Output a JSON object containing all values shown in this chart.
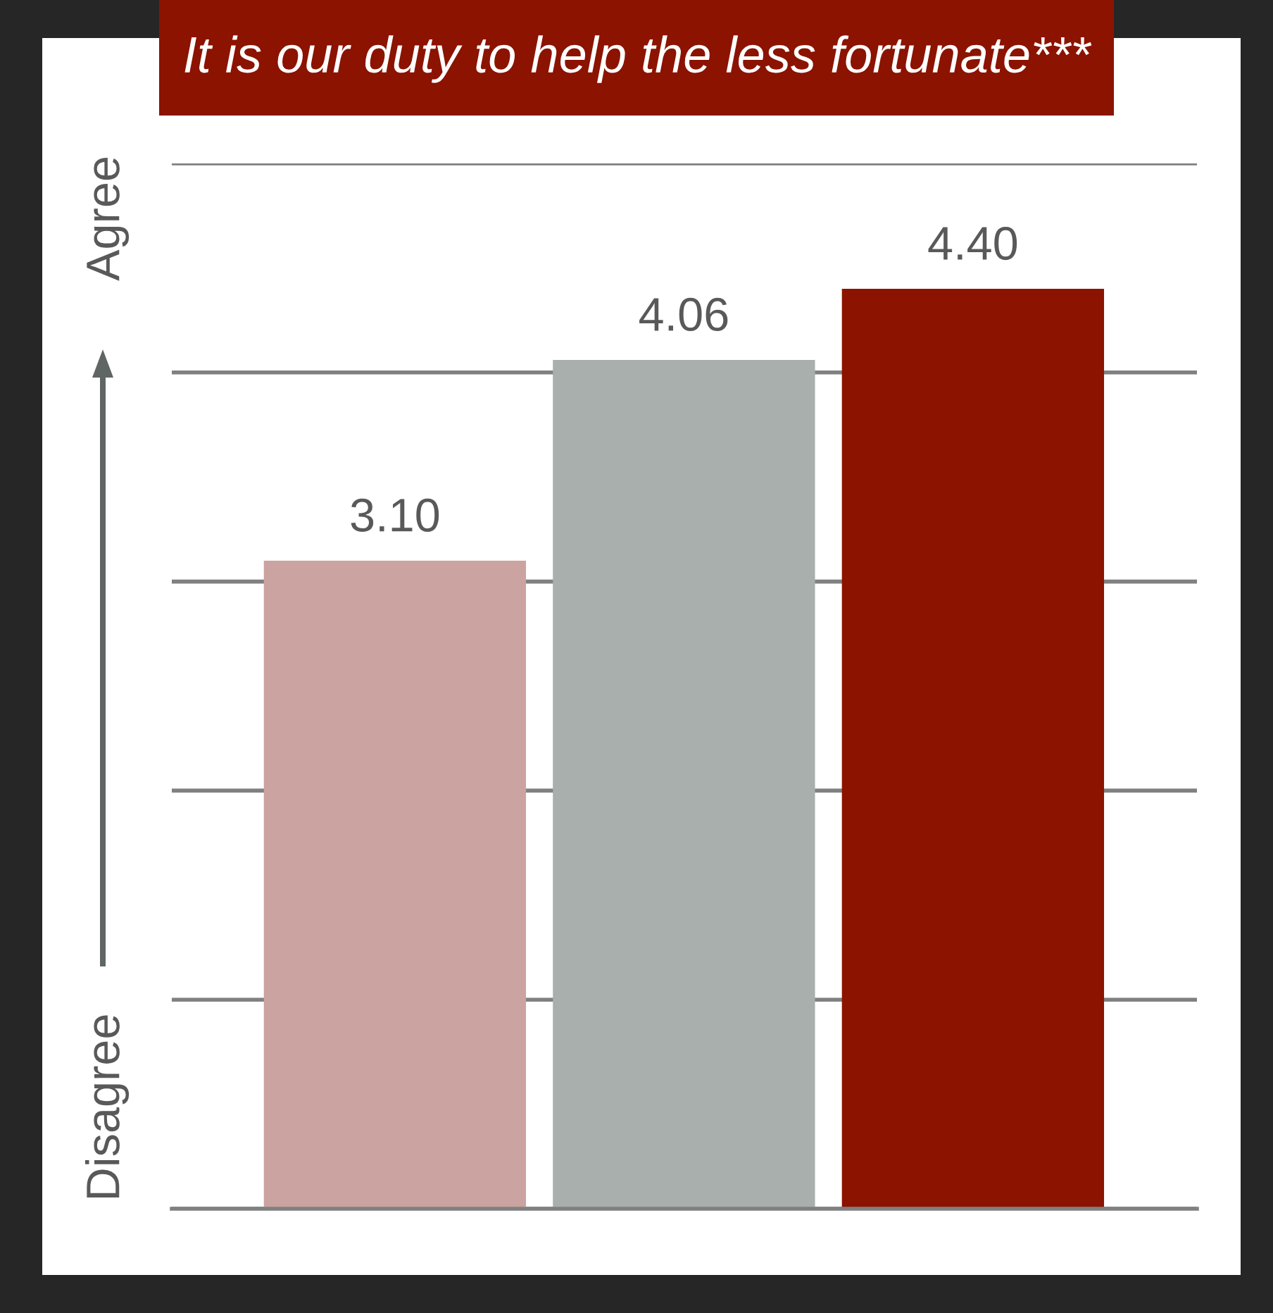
{
  "chart_data": {
    "type": "bar",
    "title": "It is our duty to help the less fortunate***",
    "categories": [
      null,
      null,
      null
    ],
    "values": [
      3.1,
      4.06,
      4.4
    ],
    "value_labels": [
      "3.10",
      "4.06",
      "4.40"
    ],
    "colors": [
      "#cba3a0",
      "#a8afac",
      "#8b1300"
    ],
    "ylim": [
      0,
      5
    ],
    "yticks": [
      {
        "value": 0,
        "label": null
      },
      {
        "value": 1,
        "label": null
      },
      {
        "value": 2,
        "label": null
      },
      {
        "value": 3,
        "label": null
      },
      {
        "value": 4,
        "label": null
      },
      {
        "value": 5,
        "label": null
      }
    ],
    "grid": "y",
    "annotations": [
      "Disagree",
      "Agree"
    ]
  }
}
